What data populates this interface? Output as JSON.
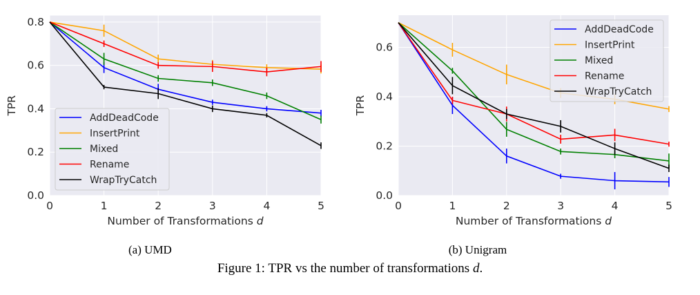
{
  "caption": {
    "prefix": "Figure 1: TPR vs the number of transformations ",
    "var": "d",
    "suffix": "."
  },
  "chart_data": [
    {
      "type": "line",
      "subtitle": "(a) UMD",
      "xlabel": "Number of Transformations",
      "xlabel_var": "d",
      "ylabel": "TPR",
      "x": [
        0,
        1,
        2,
        3,
        4,
        5
      ],
      "xlim": [
        0,
        5
      ],
      "ylim": [
        0,
        0.83
      ],
      "yticks": [
        0.0,
        0.2,
        0.4,
        0.6,
        0.8
      ],
      "ytick_labels": [
        "0.0",
        "0.2",
        "0.4",
        "0.6",
        "0.8"
      ],
      "xtick_labels": [
        "0",
        "1",
        "2",
        "3",
        "4",
        "5"
      ],
      "grid": true,
      "legend_position": "lower-left",
      "series": [
        {
          "name": "AddDeadCode",
          "color": "#0000ff",
          "values": [
            0.8,
            0.59,
            0.49,
            0.43,
            0.4,
            0.38
          ],
          "err": [
            0,
            0.025,
            0.025,
            0.012,
            0.012,
            0.015
          ]
        },
        {
          "name": "InsertPrint",
          "color": "#ffa500",
          "values": [
            0.8,
            0.76,
            0.63,
            0.605,
            0.59,
            0.583
          ],
          "err": [
            0,
            0.028,
            0.02,
            0.02,
            0.015,
            0.02
          ]
        },
        {
          "name": "Mixed",
          "color": "#008000",
          "values": [
            0.8,
            0.63,
            0.54,
            0.52,
            0.46,
            0.35
          ],
          "err": [
            0,
            0.028,
            0.015,
            0.015,
            0.015,
            0.018
          ]
        },
        {
          "name": "Rename",
          "color": "#ff0000",
          "values": [
            0.8,
            0.7,
            0.6,
            0.595,
            0.57,
            0.595
          ],
          "err": [
            0,
            0.015,
            0.015,
            0.025,
            0.02,
            0.025
          ]
        },
        {
          "name": "WrapTryCatch",
          "color": "#000000",
          "values": [
            0.8,
            0.5,
            0.47,
            0.4,
            0.37,
            0.23
          ],
          "err": [
            0,
            0.01,
            0.025,
            0.015,
            0.01,
            0.015
          ]
        }
      ]
    },
    {
      "type": "line",
      "subtitle": "(b) Unigram",
      "xlabel": "Number of Transformations",
      "xlabel_var": "d",
      "ylabel": "TPR",
      "x": [
        0,
        1,
        2,
        3,
        4,
        5
      ],
      "xlim": [
        0,
        5
      ],
      "ylim": [
        0,
        0.73
      ],
      "yticks": [
        0.0,
        0.2,
        0.4,
        0.6
      ],
      "ytick_labels": [
        "0.0",
        "0.2",
        "0.4",
        "0.6"
      ],
      "xtick_labels": [
        "0",
        "1",
        "2",
        "3",
        "4",
        "5"
      ],
      "grid": true,
      "legend_position": "upper-right",
      "series": [
        {
          "name": "AddDeadCode",
          "color": "#0000ff",
          "values": [
            0.7,
            0.365,
            0.16,
            0.078,
            0.06,
            0.055
          ],
          "err": [
            0,
            0.035,
            0.03,
            0.01,
            0.035,
            0.02
          ]
        },
        {
          "name": "InsertPrint",
          "color": "#ffa500",
          "values": [
            0.7,
            0.59,
            0.49,
            0.415,
            0.39,
            0.35
          ],
          "err": [
            0,
            0.028,
            0.04,
            0.02,
            0.02,
            0.012
          ]
        },
        {
          "name": "Mixed",
          "color": "#008000",
          "values": [
            0.7,
            0.505,
            0.268,
            0.178,
            0.166,
            0.14
          ],
          "err": [
            0,
            0.012,
            0.03,
            0.012,
            0.015,
            0.03
          ]
        },
        {
          "name": "Rename",
          "color": "#ff0000",
          "values": [
            0.7,
            0.385,
            0.33,
            0.228,
            0.245,
            0.208
          ],
          "err": [
            0,
            0.015,
            0.03,
            0.018,
            0.025,
            0.01
          ]
        },
        {
          "name": "WrapTryCatch",
          "color": "#000000",
          "values": [
            0.7,
            0.445,
            0.33,
            0.28,
            0.19,
            0.11
          ],
          "err": [
            0,
            0.035,
            0.02,
            0.025,
            0.025,
            0.015
          ]
        }
      ]
    }
  ]
}
